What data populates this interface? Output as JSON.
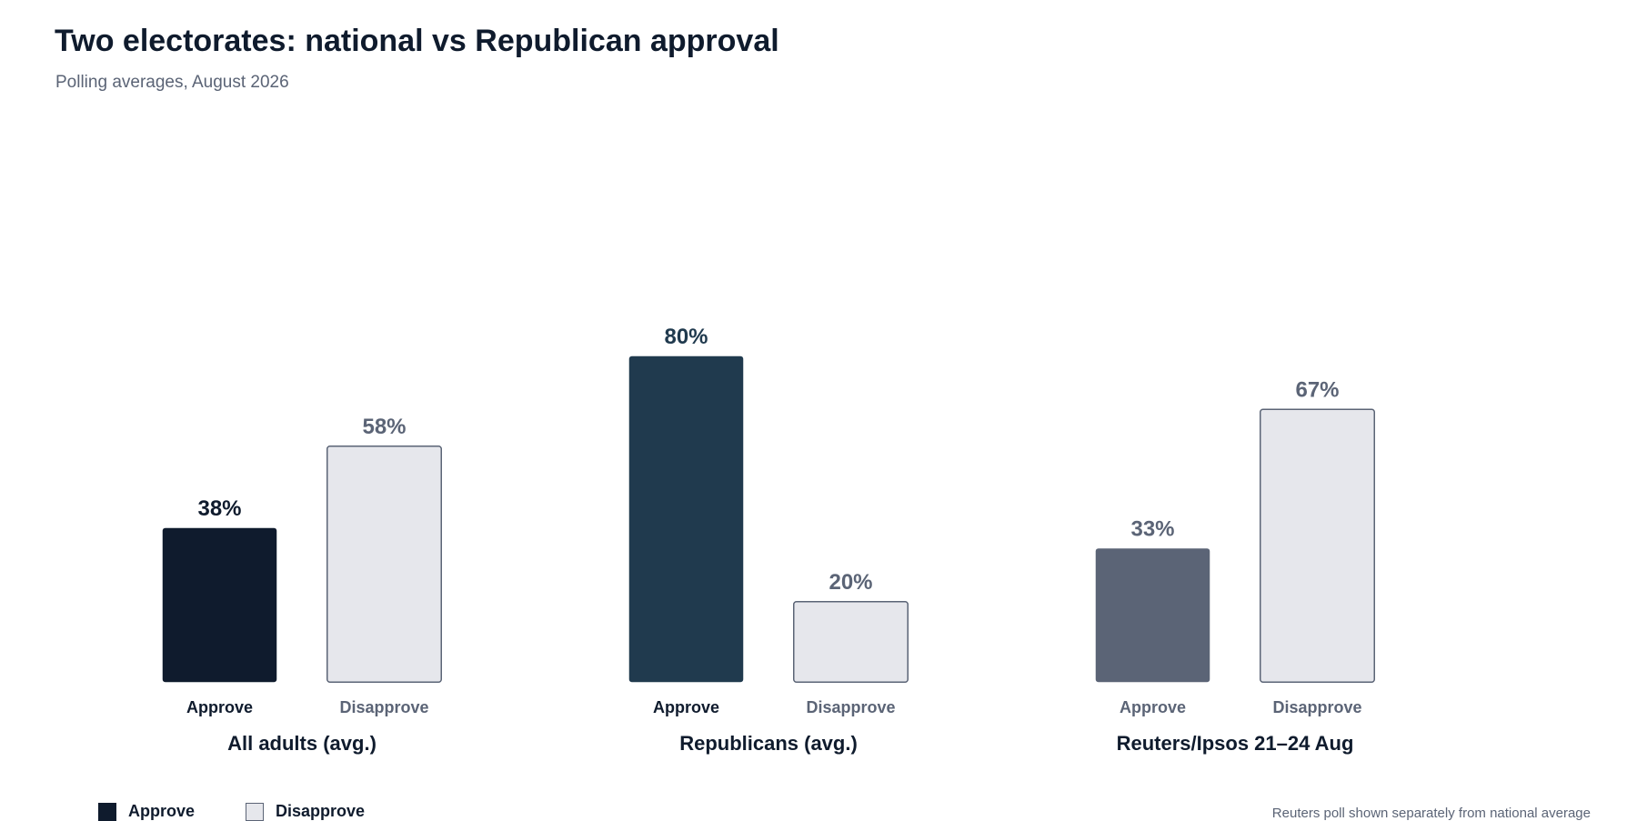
{
  "title": "Two electorates: national vs Republican approval",
  "subtitle": "Polling averages, August 2026",
  "footnote": "Reuters poll shown separately from national average",
  "legend": [
    {
      "label": "Approve"
    },
    {
      "label": "Disapprove"
    }
  ],
  "chart_data": {
    "type": "bar",
    "title": "Two electorates: national vs Republican approval",
    "subtitle": "Polling averages, August 2026",
    "categories": [
      "All adults (avg.)",
      "Republicans (avg.)",
      "Reuters/Ipsos 21–24 Aug"
    ],
    "series": [
      {
        "name": "Approve",
        "values": [
          38,
          80,
          33
        ]
      },
      {
        "name": "Disapprove",
        "values": [
          58,
          20,
          67
        ]
      }
    ],
    "bar_labels": [
      "Approve",
      "Disapprove"
    ],
    "value_suffix": "%",
    "ylim": [
      0,
      100
    ],
    "grid": false,
    "legend_position": "bottom-left",
    "colors": {
      "approve": [
        "#0f1b2d",
        "#203a4e",
        "#5b6476"
      ],
      "disapprove_fill": "#e6e7ec",
      "disapprove_stroke": "#5b6476",
      "approve_value_label": [
        "#0f1b2d",
        "#203a4e",
        "#5b6476"
      ],
      "approve_bar_label": [
        "#0f1b2d",
        "#0f1b2d",
        "#5b6476"
      ],
      "disapprove_label": "#5b6476",
      "category_label": "#0f1b2d"
    }
  }
}
